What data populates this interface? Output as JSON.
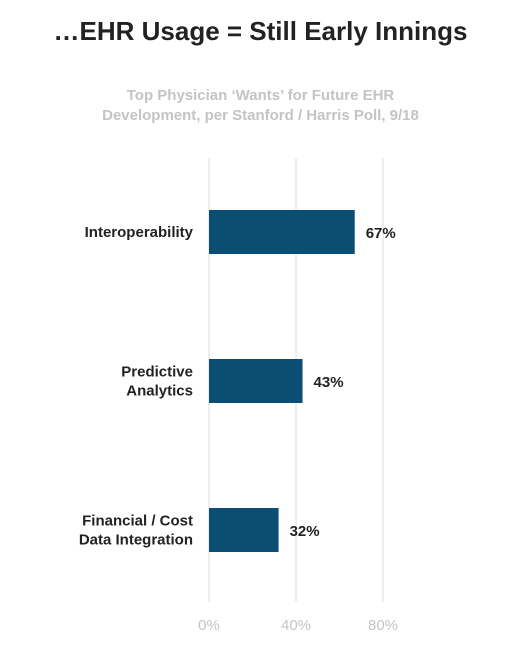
{
  "title": "…EHR Usage = Still Early Innings",
  "subtitle_lines": [
    "Top Physician ‘Wants’ for Future EHR",
    "Development, per Stanford / Harris Poll, 9/18"
  ],
  "colors": {
    "bar": "#0b4d73",
    "grid": "#dcdcdc",
    "tick": "#c4c4c4",
    "text": "#222222"
  },
  "chart_data": {
    "type": "bar",
    "orientation": "horizontal",
    "categories": [
      [
        "Interoperability"
      ],
      [
        "Predictive",
        "Analytics"
      ],
      [
        "Financial / Cost",
        "Data Integration"
      ]
    ],
    "values": [
      67,
      43,
      32
    ],
    "value_labels": [
      "67%",
      "43%",
      "32%"
    ],
    "xlim": [
      0,
      80
    ],
    "xticks": [
      0,
      40,
      80
    ],
    "xtick_labels": [
      "0%",
      "40%",
      "80%"
    ],
    "grid": true,
    "legend": "none"
  }
}
